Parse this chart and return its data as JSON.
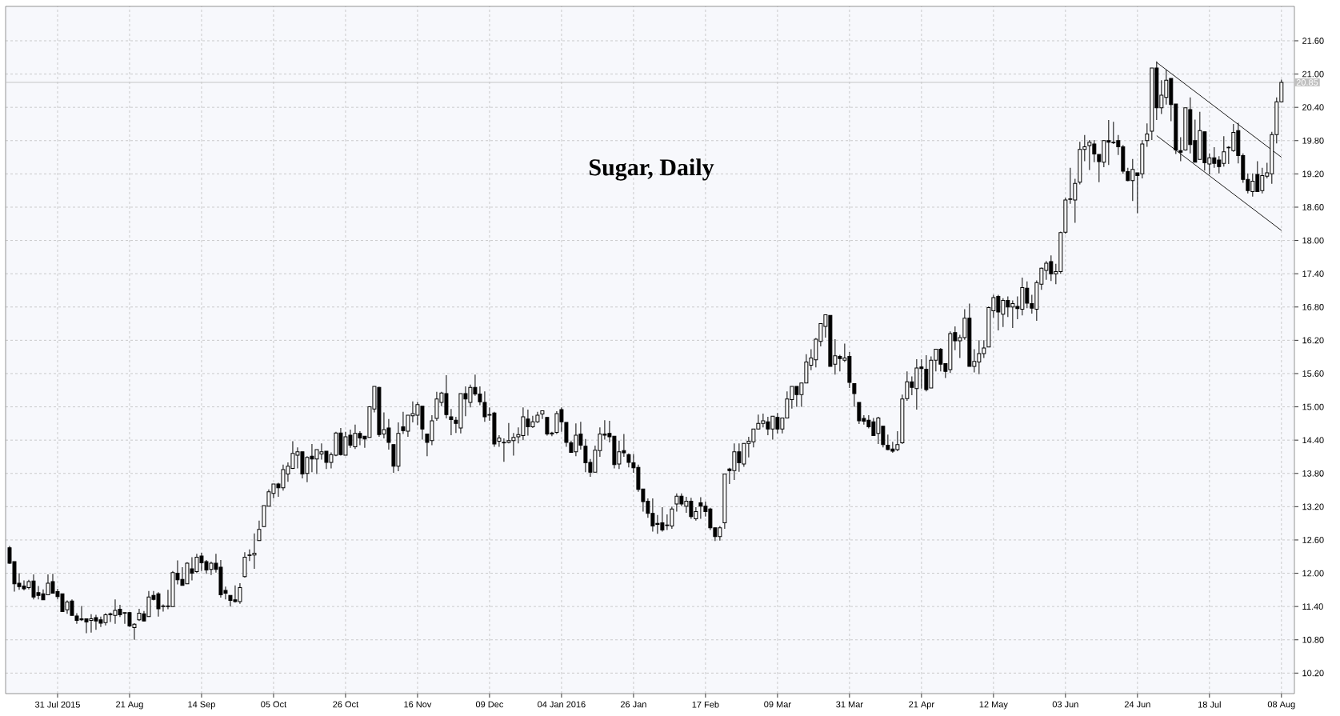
{
  "chart_data": {
    "type": "candlestick",
    "title": "Sugar, Daily",
    "categories": [
      null,
      null,
      null,
      null,
      null,
      null,
      null,
      null,
      null,
      null,
      "31 Jul 2015",
      null,
      null,
      null,
      null,
      null,
      null,
      null,
      null,
      null,
      null,
      null,
      null,
      null,
      null,
      "21 Aug",
      null,
      null,
      null,
      null,
      null,
      null,
      null,
      null,
      null,
      null,
      null,
      null,
      null,
      null,
      "14 Sep",
      null,
      null,
      null,
      null,
      null,
      null,
      null,
      null,
      null,
      null,
      null,
      null,
      null,
      null,
      "05 Oct",
      null,
      null,
      null,
      null,
      null,
      null,
      null,
      null,
      null,
      null,
      null,
      null,
      null,
      null,
      "26 Oct",
      null,
      null,
      null,
      null,
      null,
      null,
      null,
      null,
      null,
      null,
      null,
      null,
      null,
      null,
      "16 Nov",
      null,
      null,
      null,
      null,
      null,
      null,
      null,
      null,
      null,
      null,
      null,
      null,
      null,
      null,
      "09 Dec",
      null,
      null,
      null,
      null,
      null,
      null,
      null,
      null,
      null,
      null,
      null,
      null,
      null,
      null,
      "04 Jan 2016",
      null,
      null,
      null,
      null,
      null,
      null,
      null,
      null,
      null,
      null,
      null,
      null,
      null,
      null,
      "26 Jan",
      null,
      null,
      null,
      null,
      null,
      null,
      null,
      null,
      null,
      null,
      null,
      null,
      null,
      null,
      "17 Feb",
      null,
      null,
      null,
      null,
      null,
      null,
      null,
      null,
      null,
      null,
      null,
      null,
      null,
      null,
      "09 Mar",
      null,
      null,
      null,
      null,
      null,
      null,
      null,
      null,
      null,
      null,
      null,
      null,
      null,
      null,
      "31 Mar",
      null,
      null,
      null,
      null,
      null,
      null,
      null,
      null,
      null,
      null,
      null,
      null,
      null,
      null,
      "21 Apr",
      null,
      null,
      null,
      null,
      null,
      null,
      null,
      null,
      null,
      null,
      null,
      null,
      null,
      null,
      "12 May",
      null,
      null,
      null,
      null,
      null,
      null,
      null,
      null,
      null,
      null,
      null,
      null,
      null,
      null,
      "03 Jun",
      null,
      null,
      null,
      null,
      null,
      null,
      null,
      null,
      null,
      null,
      null,
      null,
      null,
      null,
      "24 Jun",
      null,
      null,
      null,
      null,
      null,
      null,
      null,
      null,
      null,
      null,
      null,
      null,
      null,
      null,
      "18 Jul",
      null,
      null,
      null,
      null,
      null,
      null,
      null,
      null,
      null,
      null,
      null,
      null,
      null,
      null,
      "08 Aug"
    ],
    "ohlc": [
      [
        12.46,
        12.49,
        12.17,
        12.18
      ],
      [
        12.21,
        12.21,
        11.67,
        11.81
      ],
      [
        11.82,
        12.0,
        11.7,
        11.76
      ],
      [
        11.77,
        11.87,
        11.69,
        11.72
      ],
      [
        11.74,
        11.88,
        11.71,
        11.85
      ],
      [
        11.86,
        11.98,
        11.53,
        11.57
      ],
      [
        11.65,
        11.77,
        11.53,
        11.6
      ],
      [
        11.63,
        11.71,
        11.52,
        11.52
      ],
      [
        11.61,
        11.98,
        11.61,
        11.82
      ],
      [
        11.85,
        11.99,
        11.64,
        11.64
      ],
      [
        11.67,
        11.72,
        11.53,
        11.58
      ],
      [
        11.63,
        11.63,
        11.31,
        11.31
      ],
      [
        11.34,
        11.51,
        11.27,
        11.48
      ],
      [
        11.5,
        11.53,
        11.24,
        11.24
      ],
      [
        11.23,
        11.28,
        11.09,
        11.15
      ],
      [
        11.18,
        11.41,
        11.14,
        11.16
      ],
      [
        11.18,
        11.18,
        10.92,
        11.12
      ],
      [
        11.15,
        11.26,
        10.93,
        11.18
      ],
      [
        11.2,
        11.25,
        10.98,
        11.14
      ],
      [
        11.16,
        11.22,
        11.03,
        11.1
      ],
      [
        11.11,
        11.28,
        11.06,
        11.25
      ],
      [
        11.27,
        11.29,
        11.12,
        11.25
      ],
      [
        11.24,
        11.53,
        11.09,
        11.33
      ],
      [
        11.35,
        11.43,
        11.21,
        11.25
      ],
      [
        11.29,
        11.29,
        11.09,
        11.28
      ],
      [
        11.29,
        11.3,
        11.03,
        11.05
      ],
      [
        11.02,
        11.1,
        10.8,
        11.08
      ],
      [
        11.16,
        11.36,
        11.14,
        11.28
      ],
      [
        11.27,
        11.32,
        11.13,
        11.14
      ],
      [
        11.22,
        11.68,
        11.22,
        11.57
      ],
      [
        11.6,
        11.68,
        11.51,
        11.53
      ],
      [
        11.63,
        11.66,
        11.22,
        11.36
      ],
      [
        11.4,
        11.44,
        11.31,
        11.41
      ],
      [
        11.41,
        11.7,
        11.35,
        11.4
      ],
      [
        11.4,
        12.04,
        11.4,
        12.01
      ],
      [
        12.0,
        12.23,
        11.8,
        11.88
      ],
      [
        11.89,
        12.11,
        11.78,
        11.78
      ],
      [
        11.81,
        12.2,
        11.81,
        12.18
      ],
      [
        12.08,
        12.29,
        11.87,
        12.0
      ],
      [
        12.03,
        12.35,
        12.0,
        12.29
      ],
      [
        12.31,
        12.37,
        12.04,
        12.19
      ],
      [
        12.21,
        12.24,
        11.99,
        12.06
      ],
      [
        12.07,
        12.21,
        11.97,
        12.18
      ],
      [
        12.18,
        12.35,
        12.01,
        12.07
      ],
      [
        12.11,
        12.24,
        11.56,
        11.61
      ],
      [
        11.69,
        11.76,
        11.53,
        11.64
      ],
      [
        11.6,
        11.6,
        11.4,
        11.51
      ],
      [
        11.52,
        11.78,
        11.47,
        11.49
      ],
      [
        11.49,
        11.82,
        11.45,
        11.74
      ],
      [
        11.94,
        12.38,
        11.92,
        12.29
      ],
      [
        12.32,
        12.43,
        12.22,
        12.33
      ],
      [
        12.33,
        12.72,
        12.08,
        12.36
      ],
      [
        12.59,
        12.95,
        12.59,
        12.79
      ],
      [
        12.84,
        13.22,
        12.83,
        13.22
      ],
      [
        13.21,
        13.51,
        13.21,
        13.47
      ],
      [
        13.44,
        13.61,
        13.35,
        13.61
      ],
      [
        13.61,
        13.63,
        13.38,
        13.54
      ],
      [
        13.54,
        13.96,
        13.49,
        13.87
      ],
      [
        13.79,
        14.0,
        13.65,
        13.93
      ],
      [
        13.89,
        14.38,
        13.88,
        14.16
      ],
      [
        14.13,
        14.27,
        13.89,
        14.19
      ],
      [
        14.19,
        14.19,
        13.71,
        13.79
      ],
      [
        13.8,
        14.11,
        13.64,
        14.09
      ],
      [
        14.11,
        14.33,
        13.82,
        14.06
      ],
      [
        14.06,
        14.23,
        13.79,
        14.23
      ],
      [
        14.15,
        14.34,
        14.05,
        14.19
      ],
      [
        14.2,
        14.2,
        13.88,
        14.0
      ],
      [
        14.0,
        14.18,
        13.89,
        14.14
      ],
      [
        14.13,
        14.55,
        14.11,
        14.53
      ],
      [
        14.53,
        14.62,
        14.12,
        14.14
      ],
      [
        14.13,
        14.55,
        14.13,
        14.46
      ],
      [
        14.49,
        14.59,
        14.26,
        14.31
      ],
      [
        14.28,
        14.68,
        14.24,
        14.52
      ],
      [
        14.52,
        14.56,
        14.31,
        14.44
      ],
      [
        14.47,
        14.47,
        14.26,
        14.42
      ],
      [
        14.45,
        15.01,
        14.45,
        15.0
      ],
      [
        14.96,
        15.37,
        14.9,
        15.37
      ],
      [
        15.35,
        15.36,
        14.46,
        14.5
      ],
      [
        14.51,
        14.9,
        14.43,
        14.59
      ],
      [
        14.62,
        14.78,
        14.23,
        14.36
      ],
      [
        14.32,
        14.32,
        13.81,
        13.93
      ],
      [
        13.93,
        14.72,
        13.84,
        14.52
      ],
      [
        14.64,
        14.91,
        14.51,
        14.57
      ],
      [
        14.56,
        14.85,
        14.46,
        14.85
      ],
      [
        14.84,
        15.1,
        14.72,
        14.88
      ],
      [
        14.85,
        15.09,
        14.67,
        15.04
      ],
      [
        15.01,
        15.01,
        14.41,
        14.6
      ],
      [
        14.51,
        14.51,
        14.11,
        14.36
      ],
      [
        14.39,
        14.85,
        14.31,
        14.75
      ],
      [
        14.79,
        15.27,
        14.75,
        15.14
      ],
      [
        15.08,
        15.27,
        15.01,
        15.25
      ],
      [
        15.24,
        15.57,
        14.79,
        14.86
      ],
      [
        14.82,
        14.96,
        14.49,
        14.77
      ],
      [
        14.76,
        14.82,
        14.53,
        14.7
      ],
      [
        14.62,
        15.24,
        14.52,
        15.24
      ],
      [
        15.24,
        15.37,
        14.83,
        15.14
      ],
      [
        15.08,
        15.4,
        14.99,
        15.35
      ],
      [
        15.35,
        15.58,
        15.2,
        15.23
      ],
      [
        15.23,
        15.37,
        15.03,
        15.09
      ],
      [
        15.08,
        15.28,
        14.73,
        14.82
      ],
      [
        14.86,
        14.99,
        14.75,
        14.85
      ],
      [
        14.89,
        14.91,
        14.28,
        14.33
      ],
      [
        14.38,
        14.49,
        14.28,
        14.44
      ],
      [
        14.36,
        14.43,
        14.01,
        14.35
      ],
      [
        14.36,
        14.71,
        14.34,
        14.39
      ],
      [
        14.39,
        14.53,
        14.12,
        14.45
      ],
      [
        14.46,
        14.63,
        14.34,
        14.5
      ],
      [
        14.48,
        14.99,
        14.4,
        14.82
      ],
      [
        14.78,
        14.95,
        14.48,
        14.64
      ],
      [
        14.64,
        14.84,
        14.62,
        14.73
      ],
      [
        14.73,
        14.91,
        14.71,
        14.85
      ],
      [
        14.87,
        14.93,
        14.78,
        14.93
      ],
      [
        14.81,
        14.81,
        14.48,
        14.51
      ],
      [
        14.53,
        14.55,
        14.47,
        14.51
      ],
      [
        14.54,
        14.92,
        14.51,
        14.88
      ],
      [
        14.95,
        14.99,
        14.55,
        14.73
      ],
      [
        14.72,
        14.72,
        14.28,
        14.36
      ],
      [
        14.35,
        14.39,
        14.17,
        14.18
      ],
      [
        14.19,
        14.7,
        14.11,
        14.49
      ],
      [
        14.51,
        14.73,
        14.23,
        14.31
      ],
      [
        14.29,
        14.42,
        13.82,
        13.99
      ],
      [
        14.0,
        14.06,
        13.74,
        13.82
      ],
      [
        13.82,
        14.3,
        13.82,
        14.22
      ],
      [
        14.21,
        14.63,
        14.1,
        14.51
      ],
      [
        14.51,
        14.76,
        14.41,
        14.49
      ],
      [
        14.52,
        14.75,
        14.36,
        14.46
      ],
      [
        14.47,
        14.47,
        13.89,
        13.96
      ],
      [
        13.97,
        14.39,
        13.88,
        14.19
      ],
      [
        14.21,
        14.51,
        14.1,
        14.17
      ],
      [
        14.14,
        14.16,
        13.91,
        14.0
      ],
      [
        13.99,
        14.15,
        13.81,
        13.9
      ],
      [
        13.91,
        13.96,
        13.47,
        13.51
      ],
      [
        13.52,
        13.52,
        13.11,
        13.29
      ],
      [
        13.3,
        13.35,
        13.0,
        13.08
      ],
      [
        13.08,
        13.35,
        12.75,
        12.85
      ],
      [
        12.9,
        13.05,
        12.71,
        12.88
      ],
      [
        12.91,
        13.19,
        12.75,
        12.78
      ],
      [
        12.86,
        13.06,
        12.78,
        12.87
      ],
      [
        12.85,
        13.2,
        12.8,
        13.16
      ],
      [
        13.25,
        13.44,
        13.11,
        13.39
      ],
      [
        13.39,
        13.44,
        13.21,
        13.25
      ],
      [
        13.21,
        13.38,
        13.09,
        13.3
      ],
      [
        13.3,
        13.36,
        12.98,
        13.02
      ],
      [
        12.98,
        13.19,
        12.95,
        13.11
      ],
      [
        13.27,
        13.37,
        12.98,
        13.21
      ],
      [
        13.21,
        13.29,
        13.02,
        13.11
      ],
      [
        13.16,
        13.18,
        12.78,
        12.82
      ],
      [
        12.82,
        12.82,
        12.58,
        12.66
      ],
      [
        12.66,
        12.85,
        12.59,
        12.82
      ],
      [
        12.91,
        13.79,
        12.8,
        13.79
      ],
      [
        13.88,
        13.9,
        13.61,
        13.85
      ],
      [
        13.85,
        14.34,
        13.68,
        14.19
      ],
      [
        14.19,
        14.34,
        13.83,
        13.99
      ],
      [
        13.97,
        14.34,
        13.92,
        14.34
      ],
      [
        14.34,
        14.46,
        14.09,
        14.38
      ],
      [
        14.37,
        14.6,
        14.27,
        14.6
      ],
      [
        14.6,
        14.86,
        14.6,
        14.7
      ],
      [
        14.7,
        14.88,
        14.63,
        14.75
      ],
      [
        14.73,
        14.82,
        14.49,
        14.6
      ],
      [
        14.6,
        14.83,
        14.41,
        14.83
      ],
      [
        14.81,
        14.89,
        14.52,
        14.6
      ],
      [
        14.6,
        14.8,
        14.52,
        14.8
      ],
      [
        14.8,
        15.28,
        14.8,
        15.14
      ],
      [
        15.13,
        15.37,
        14.97,
        15.37
      ],
      [
        15.37,
        15.37,
        15.0,
        15.22
      ],
      [
        15.22,
        15.43,
        15.0,
        15.43
      ],
      [
        15.43,
        15.95,
        15.43,
        15.81
      ],
      [
        15.75,
        16.04,
        15.66,
        15.88
      ],
      [
        15.85,
        16.24,
        15.71,
        16.22
      ],
      [
        16.18,
        16.5,
        16.09,
        16.5
      ],
      [
        16.45,
        16.66,
        16.25,
        16.66
      ],
      [
        16.65,
        16.65,
        15.73,
        15.73
      ],
      [
        15.77,
        16.22,
        15.58,
        15.92
      ],
      [
        15.91,
        15.94,
        15.64,
        15.87
      ],
      [
        15.84,
        16.14,
        15.81,
        15.88
      ],
      [
        15.91,
        15.99,
        15.34,
        15.44
      ],
      [
        15.42,
        15.42,
        15.0,
        15.24
      ],
      [
        15.08,
        15.08,
        14.69,
        14.75
      ],
      [
        14.79,
        14.85,
        14.68,
        14.74
      ],
      [
        14.76,
        14.85,
        14.61,
        14.64
      ],
      [
        14.73,
        14.8,
        14.48,
        14.48
      ],
      [
        14.52,
        14.82,
        14.33,
        14.8
      ],
      [
        14.65,
        14.65,
        14.27,
        14.32
      ],
      [
        14.31,
        14.5,
        14.22,
        14.23
      ],
      [
        14.24,
        14.37,
        14.17,
        14.2
      ],
      [
        14.23,
        14.56,
        14.2,
        14.32
      ],
      [
        14.35,
        15.22,
        14.33,
        15.14
      ],
      [
        15.15,
        15.64,
        15.11,
        15.45
      ],
      [
        15.45,
        15.55,
        15.21,
        15.35
      ],
      [
        15.33,
        15.86,
        14.95,
        15.7
      ],
      [
        15.72,
        15.86,
        15.33,
        15.69
      ],
      [
        15.68,
        15.93,
        15.28,
        15.31
      ],
      [
        15.34,
        15.91,
        15.34,
        15.84
      ],
      [
        15.84,
        16.04,
        15.64,
        16.04
      ],
      [
        16.04,
        16.06,
        15.64,
        15.77
      ],
      [
        15.78,
        15.78,
        15.52,
        15.64
      ],
      [
        15.67,
        16.36,
        15.61,
        16.32
      ],
      [
        16.34,
        16.45,
        16.02,
        16.19
      ],
      [
        16.19,
        16.3,
        15.88,
        16.25
      ],
      [
        16.25,
        16.76,
        16.21,
        16.6
      ],
      [
        16.6,
        16.86,
        15.73,
        15.73
      ],
      [
        15.73,
        16.04,
        15.62,
        15.82
      ],
      [
        15.81,
        16.2,
        15.59,
        15.96
      ],
      [
        15.96,
        16.2,
        15.88,
        16.06
      ],
      [
        16.08,
        16.81,
        16.08,
        16.79
      ],
      [
        16.73,
        17.02,
        16.61,
        16.97
      ],
      [
        16.99,
        17.02,
        16.38,
        16.71
      ],
      [
        16.67,
        16.96,
        16.44,
        16.92
      ],
      [
        16.92,
        16.99,
        16.62,
        16.8
      ],
      [
        16.8,
        16.92,
        16.42,
        16.86
      ],
      [
        16.81,
        16.99,
        16.58,
        16.77
      ],
      [
        16.76,
        17.33,
        16.65,
        17.15
      ],
      [
        17.14,
        17.26,
        16.78,
        16.87
      ],
      [
        16.86,
        17.02,
        16.68,
        16.78
      ],
      [
        16.76,
        17.28,
        16.55,
        17.24
      ],
      [
        17.21,
        17.51,
        17.11,
        17.5
      ],
      [
        17.46,
        17.63,
        17.29,
        17.59
      ],
      [
        17.62,
        17.73,
        17.27,
        17.4
      ],
      [
        17.4,
        17.58,
        17.21,
        17.44
      ],
      [
        17.44,
        18.16,
        17.4,
        18.14
      ],
      [
        18.15,
        18.77,
        18.12,
        18.73
      ],
      [
        18.74,
        19.31,
        18.66,
        18.75
      ],
      [
        18.73,
        19.11,
        18.32,
        19.03
      ],
      [
        19.05,
        19.78,
        19.01,
        19.64
      ],
      [
        19.64,
        19.9,
        19.43,
        19.69
      ],
      [
        19.71,
        19.81,
        19.27,
        19.77
      ],
      [
        19.74,
        19.81,
        19.41,
        19.56
      ],
      [
        19.55,
        19.55,
        19.05,
        19.42
      ],
      [
        19.41,
        19.81,
        19.32,
        19.8
      ],
      [
        19.8,
        20.17,
        19.36,
        19.77
      ],
      [
        19.77,
        20.14,
        19.74,
        19.76
      ],
      [
        19.8,
        19.9,
        19.54,
        19.69
      ],
      [
        19.69,
        19.72,
        19.2,
        19.25
      ],
      [
        19.24,
        19.31,
        19.07,
        19.08
      ],
      [
        19.08,
        19.47,
        18.71,
        19.28
      ],
      [
        19.22,
        19.22,
        18.49,
        19.17
      ],
      [
        19.2,
        19.81,
        19.12,
        19.74
      ],
      [
        19.8,
        20.11,
        19.69,
        19.92
      ],
      [
        19.97,
        21.11,
        19.81,
        21.11
      ],
      [
        21.11,
        21.23,
        20.17,
        20.39
      ],
      [
        20.39,
        20.89,
        20.28,
        20.62
      ],
      [
        20.58,
        21.08,
        20.45,
        20.89
      ],
      [
        20.92,
        20.92,
        20.15,
        20.45
      ],
      [
        20.46,
        20.46,
        19.56,
        19.63
      ],
      [
        19.62,
        19.86,
        19.43,
        19.59
      ],
      [
        19.63,
        20.39,
        19.62,
        20.39
      ],
      [
        20.36,
        20.58,
        19.57,
        19.73
      ],
      [
        19.8,
        20.18,
        19.41,
        19.41
      ],
      [
        19.46,
        20.32,
        19.46,
        19.98
      ],
      [
        19.96,
        19.96,
        19.26,
        19.4
      ],
      [
        19.38,
        19.57,
        19.19,
        19.49
      ],
      [
        19.49,
        19.68,
        19.31,
        19.39
      ],
      [
        19.45,
        19.52,
        19.21,
        19.33
      ],
      [
        19.39,
        19.88,
        19.33,
        19.6
      ],
      [
        19.67,
        19.7,
        19.38,
        19.68
      ],
      [
        19.62,
        20.1,
        19.6,
        19.95
      ],
      [
        19.98,
        20.12,
        19.39,
        19.53
      ],
      [
        19.53,
        19.57,
        19.04,
        19.1
      ],
      [
        19.1,
        19.21,
        18.85,
        18.9
      ],
      [
        18.88,
        19.21,
        18.79,
        19.07
      ],
      [
        19.19,
        19.43,
        18.88,
        18.88
      ],
      [
        18.9,
        19.31,
        18.85,
        19.17
      ],
      [
        19.16,
        19.4,
        19.12,
        19.22
      ],
      [
        19.2,
        19.96,
        19.02,
        19.91
      ],
      [
        19.91,
        20.58,
        19.75,
        20.5
      ],
      [
        20.5,
        20.9,
        20.5,
        20.85
      ]
    ],
    "series": [
      {
        "type": "line",
        "values": [
          null,
          null,
          null,
          null,
          null,
          null,
          null,
          null,
          null,
          null,
          null,
          null,
          null,
          null,
          null,
          null,
          null,
          null,
          null,
          null,
          null,
          null,
          null,
          null,
          null,
          null,
          null,
          null,
          null,
          null,
          null,
          null,
          null,
          null,
          null,
          null,
          null,
          null,
          null,
          null,
          null,
          null,
          null,
          null,
          null,
          null,
          null,
          null,
          null,
          null,
          null,
          null,
          null,
          null,
          null,
          null,
          null,
          null,
          null,
          null,
          null,
          null,
          null,
          null,
          null,
          null,
          null,
          null,
          null,
          null,
          null,
          null,
          null,
          null,
          null,
          null,
          null,
          null,
          null,
          null,
          null,
          null,
          null,
          null,
          null,
          null,
          null,
          null,
          null,
          null,
          null,
          null,
          null,
          null,
          null,
          null,
          null,
          null,
          null,
          null,
          null,
          null,
          null,
          null,
          null,
          null,
          null,
          null,
          null,
          null,
          null,
          null,
          null,
          null,
          null,
          null,
          null,
          null,
          null,
          null,
          null,
          null,
          null,
          null,
          null,
          null,
          null,
          null,
          null,
          null,
          null,
          null,
          null,
          null,
          null,
          null,
          null,
          null,
          null,
          null,
          null,
          null,
          null,
          null,
          null,
          null,
          null,
          null,
          null,
          null,
          null,
          null,
          null,
          null,
          null,
          null,
          null,
          null,
          null,
          null,
          null,
          null,
          null,
          null,
          null,
          null,
          null,
          null,
          null,
          null,
          null,
          null,
          null,
          null,
          null,
          null,
          null,
          null,
          null,
          null,
          null,
          null,
          null,
          null,
          null,
          null,
          null,
          null,
          null,
          null,
          null,
          null,
          null,
          null,
          null,
          null,
          null,
          null,
          null,
          null,
          null,
          null,
          null,
          null,
          null,
          null,
          null,
          null,
          null,
          null,
          null,
          null,
          null,
          null,
          null,
          null,
          null,
          null,
          null,
          null,
          null,
          null,
          null,
          null,
          null,
          null,
          null,
          null,
          null,
          null,
          null,
          null,
          null,
          null,
          null,
          null,
          null,
          null,
          null,
          21.21,
          null,
          null,
          null,
          null,
          null,
          null,
          null,
          null,
          null,
          null,
          null,
          null,
          null,
          null,
          null,
          null,
          null,
          null,
          null,
          null,
          null,
          null,
          null,
          null,
          null,
          19.5
        ],
        "color": "#000000"
      },
      {
        "type": "line",
        "values": [
          null,
          null,
          null,
          null,
          null,
          null,
          null,
          null,
          null,
          null,
          null,
          null,
          null,
          null,
          null,
          null,
          null,
          null,
          null,
          null,
          null,
          null,
          null,
          null,
          null,
          null,
          null,
          null,
          null,
          null,
          null,
          null,
          null,
          null,
          null,
          null,
          null,
          null,
          null,
          null,
          null,
          null,
          null,
          null,
          null,
          null,
          null,
          null,
          null,
          null,
          null,
          null,
          null,
          null,
          null,
          null,
          null,
          null,
          null,
          null,
          null,
          null,
          null,
          null,
          null,
          null,
          null,
          null,
          null,
          null,
          null,
          null,
          null,
          null,
          null,
          null,
          null,
          null,
          null,
          null,
          null,
          null,
          null,
          null,
          null,
          null,
          null,
          null,
          null,
          null,
          null,
          null,
          null,
          null,
          null,
          null,
          null,
          null,
          null,
          null,
          null,
          null,
          null,
          null,
          null,
          null,
          null,
          null,
          null,
          null,
          null,
          null,
          null,
          null,
          null,
          null,
          null,
          null,
          null,
          null,
          null,
          null,
          null,
          null,
          null,
          null,
          null,
          null,
          null,
          null,
          null,
          null,
          null,
          null,
          null,
          null,
          null,
          null,
          null,
          null,
          null,
          null,
          null,
          null,
          null,
          null,
          null,
          null,
          null,
          null,
          null,
          null,
          null,
          null,
          null,
          null,
          null,
          null,
          null,
          null,
          null,
          null,
          null,
          null,
          null,
          null,
          null,
          null,
          null,
          null,
          null,
          null,
          null,
          null,
          null,
          null,
          null,
          null,
          null,
          null,
          null,
          null,
          null,
          null,
          null,
          null,
          null,
          null,
          null,
          null,
          null,
          null,
          null,
          null,
          null,
          null,
          null,
          null,
          null,
          null,
          null,
          null,
          null,
          null,
          null,
          null,
          null,
          null,
          null,
          null,
          null,
          null,
          null,
          null,
          null,
          null,
          null,
          null,
          null,
          null,
          null,
          null,
          null,
          null,
          null,
          null,
          null,
          null,
          null,
          null,
          null,
          null,
          null,
          null,
          null,
          null,
          null,
          null,
          null,
          19.89,
          null,
          null,
          null,
          null,
          null,
          null,
          null,
          null,
          null,
          null,
          null,
          null,
          null,
          null,
          null,
          null,
          null,
          null,
          null,
          null,
          null,
          null,
          null,
          null,
          null,
          18.18
        ],
        "color": "#000000"
      }
    ],
    "ylim": [
      9.83,
      22.22
    ],
    "yticks": [
      {
        "value": 10.2,
        "label": "10.20"
      },
      {
        "value": 10.8,
        "label": "10.80"
      },
      {
        "value": 11.4,
        "label": "11.40"
      },
      {
        "value": 12.0,
        "label": "12.00"
      },
      {
        "value": 12.6,
        "label": "12.60"
      },
      {
        "value": 13.2,
        "label": "13.20"
      },
      {
        "value": 13.8,
        "label": "13.80"
      },
      {
        "value": 14.4,
        "label": "14.40"
      },
      {
        "value": 15.0,
        "label": "15.00"
      },
      {
        "value": 15.6,
        "label": "15.60"
      },
      {
        "value": 16.2,
        "label": "16.20"
      },
      {
        "value": 16.8,
        "label": "16.80"
      },
      {
        "value": 17.4,
        "label": "17.40"
      },
      {
        "value": 18.0,
        "label": "18.00"
      },
      {
        "value": 18.6,
        "label": "18.60"
      },
      {
        "value": 19.2,
        "label": "19.20"
      },
      {
        "value": 19.8,
        "label": "19.80"
      },
      {
        "value": 20.4,
        "label": "20.40"
      },
      {
        "value": 21.0,
        "label": "21.00"
      },
      {
        "value": 21.6,
        "label": "21.60"
      }
    ],
    "grid": true,
    "ref_lines": [
      {
        "axis": "y",
        "value": 20.85,
        "label": "20.85",
        "color": "#c0c0c0"
      }
    ]
  }
}
